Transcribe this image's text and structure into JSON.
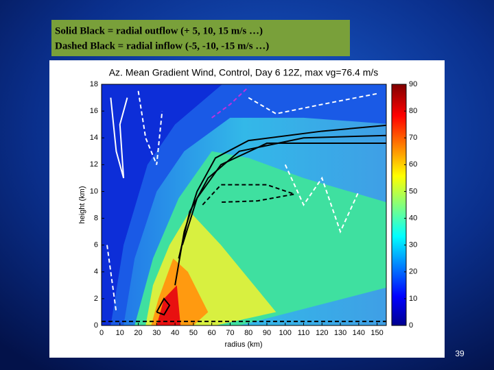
{
  "slide": {
    "note_lines": [
      "Solid Black = radial outflow (+ 5, 10, 15 m/s …)",
      "Dashed Black = radial inflow (-5, -10, -15 m/s …)"
    ],
    "page_number": "39"
  },
  "chart_data": {
    "type": "contour",
    "title": "Az. Mean Gradient Wind, Control, Day 6 12Z, max vg=76.4 m/s",
    "xlabel": "radius (km)",
    "ylabel": "height (km)",
    "xlim": [
      0,
      155
    ],
    "ylim": [
      0,
      18
    ],
    "xticks": [
      0,
      10,
      20,
      30,
      40,
      50,
      60,
      70,
      80,
      90,
      100,
      110,
      120,
      130,
      140,
      150
    ],
    "yticks": [
      0,
      2,
      4,
      6,
      8,
      10,
      12,
      14,
      16,
      18
    ],
    "clim": [
      0,
      90
    ],
    "cticks": [
      0,
      10,
      20,
      30,
      40,
      50,
      60,
      70,
      80,
      90
    ]
  }
}
